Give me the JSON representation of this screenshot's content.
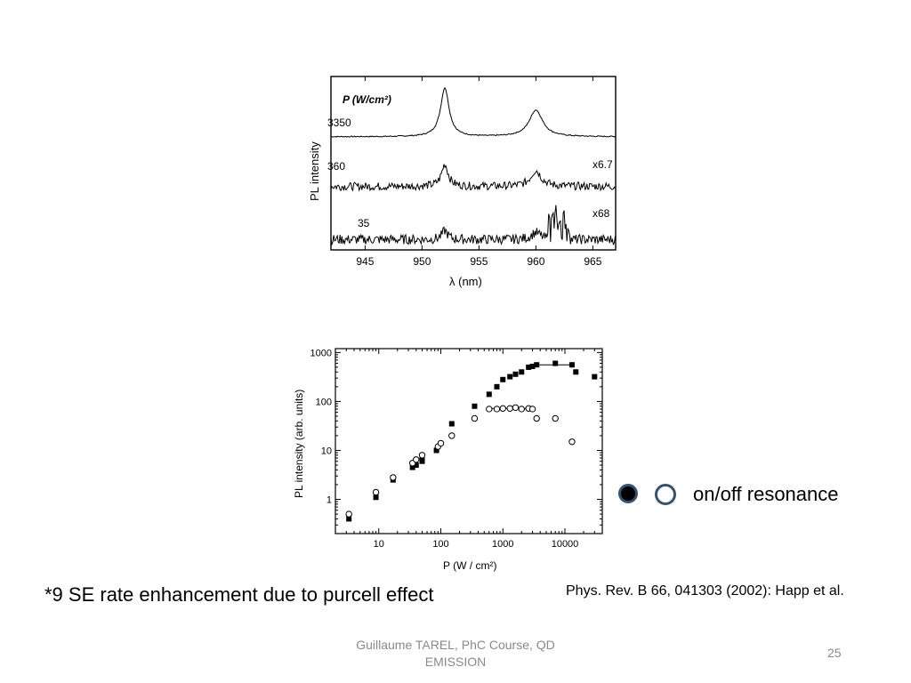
{
  "chart_data": [
    {
      "type": "line",
      "legend_header": "P (W/cm²)",
      "xlabel": "λ (nm)",
      "ylabel": "PL intensity",
      "xlim": [
        942,
        967
      ],
      "xticks": [
        "945",
        "950",
        "955",
        "960",
        "965"
      ],
      "peaks_nm": [
        952,
        960
      ],
      "series": [
        {
          "name": "3350",
          "scale_label": ""
        },
        {
          "name": "360",
          "scale_label": "x6.7"
        },
        {
          "name": "35",
          "scale_label": "x68"
        }
      ]
    },
    {
      "type": "scatter",
      "xlabel": "P (W / cm²)",
      "ylabel": "PL intensity (arb. units)",
      "xscale": "log",
      "yscale": "log",
      "xlim": [
        2,
        40000
      ],
      "ylim": [
        0.2,
        1200
      ],
      "xticks": [
        "10",
        "100",
        "1000",
        "10000"
      ],
      "yticks": [
        "1",
        "10",
        "100",
        "1000"
      ],
      "series": [
        {
          "marker": "filled-square",
          "points": [
            [
              3.3,
              0.4
            ],
            [
              9,
              1.1
            ],
            [
              17,
              2.5
            ],
            [
              35,
              4.5
            ],
            [
              40,
              5
            ],
            [
              50,
              6
            ],
            [
              50,
              7
            ],
            [
              85,
              10
            ],
            [
              150,
              35
            ],
            [
              350,
              80
            ],
            [
              600,
              140
            ],
            [
              800,
              200
            ],
            [
              1000,
              280
            ],
            [
              1300,
              320
            ],
            [
              1600,
              360
            ],
            [
              2000,
              400
            ],
            [
              2600,
              500
            ],
            [
              3000,
              520
            ],
            [
              3500,
              560
            ],
            [
              7000,
              600
            ],
            [
              13000,
              560
            ],
            [
              15000,
              400
            ],
            [
              30000,
              320
            ]
          ]
        },
        {
          "marker": "open-circle",
          "points": [
            [
              3.3,
              0.5
            ],
            [
              9,
              1.4
            ],
            [
              17,
              2.8
            ],
            [
              35,
              5.5
            ],
            [
              40,
              6.5
            ],
            [
              50,
              8
            ],
            [
              90,
              12
            ],
            [
              100,
              14
            ],
            [
              150,
              20
            ],
            [
              350,
              45
            ],
            [
              600,
              70
            ],
            [
              800,
              70
            ],
            [
              1000,
              72
            ],
            [
              1300,
              72
            ],
            [
              1600,
              75
            ],
            [
              2000,
              70
            ],
            [
              2600,
              72
            ],
            [
              3000,
              70
            ],
            [
              3500,
              45
            ],
            [
              7000,
              45
            ],
            [
              13000,
              15
            ]
          ]
        }
      ],
      "fit_lines": [
        {
          "series": "filled",
          "x": [
            3500,
            13000
          ],
          "y": 560
        },
        {
          "series": "open",
          "x": [
            600,
            3000
          ],
          "y": 72
        }
      ]
    }
  ],
  "legend": {
    "text": "on/off resonance"
  },
  "caption": "*9 SE rate enhancement due to purcell effect",
  "citation": "Phys. Rev. B 66, 041303 (2002): Happ et al.",
  "footer": {
    "author": "Guillaume TAREL, PhC Course, QD EMISSION",
    "page_number": "25"
  }
}
